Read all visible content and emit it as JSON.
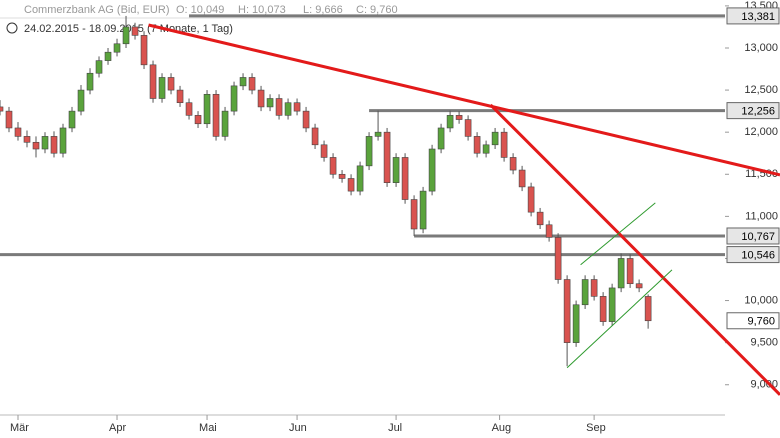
{
  "chart_data": {
    "type": "candlestick",
    "title": "Commerzbank AG (Bid, EUR)",
    "quote": [
      "O: 10,049",
      "H: 10,073",
      "L: 9,666",
      "C: 9,760"
    ],
    "subtitle": "24.02.2015 - 18.09.2015 (7 Monate, 1 Tag)",
    "x": [
      0,
      2,
      4,
      6,
      8,
      10,
      12,
      14,
      16,
      18,
      20,
      22,
      24,
      26,
      28,
      30,
      32,
      34,
      36,
      38,
      40,
      42,
      44,
      46,
      48,
      50,
      52,
      54,
      56,
      58,
      60,
      62,
      64,
      66,
      68,
      70,
      72,
      74,
      76,
      78,
      80,
      82,
      84,
      86,
      88,
      90,
      92,
      94,
      96,
      98,
      100,
      102,
      104,
      106,
      108,
      110,
      112,
      114,
      116,
      118,
      120,
      122,
      124,
      126,
      128,
      130,
      132,
      134,
      136,
      138,
      140,
      142,
      144
    ],
    "open": [
      12300,
      12250,
      12050,
      11950,
      11880,
      11800,
      11950,
      11750,
      12050,
      12250,
      12500,
      12700,
      12850,
      12950,
      13050,
      13250,
      13150,
      12800,
      12400,
      12650,
      12500,
      12350,
      12200,
      12100,
      12450,
      11950,
      12250,
      12550,
      12650,
      12500,
      12300,
      12400,
      12200,
      12350,
      12250,
      12050,
      11850,
      11700,
      11500,
      11450,
      11300,
      11600,
      11950,
      12000,
      11400,
      11700,
      11200,
      10850,
      11300,
      11800,
      12050,
      12200,
      12150,
      11950,
      11750,
      11850,
      12000,
      11700,
      11550,
      11350,
      11050,
      10900,
      10750,
      10250,
      9500,
      9950,
      10250,
      10050,
      9750,
      10150,
      10500,
      10200,
      10049
    ],
    "high": [
      12380,
      12300,
      12120,
      12020,
      11950,
      12000,
      12010,
      12100,
      12300,
      12560,
      12760,
      12900,
      13000,
      13110,
      13381,
      13300,
      13200,
      12850,
      12700,
      12700,
      12550,
      12400,
      12250,
      12500,
      12500,
      12300,
      12600,
      12700,
      12700,
      12550,
      12450,
      12450,
      12400,
      12400,
      12300,
      12100,
      11900,
      11750,
      11550,
      11500,
      11650,
      12000,
      12256,
      12050,
      11750,
      11750,
      11250,
      11350,
      11850,
      12100,
      12256,
      12250,
      12200,
      12000,
      11900,
      12050,
      12050,
      11750,
      11600,
      11400,
      11100,
      10950,
      10800,
      10300,
      10000,
      10300,
      10300,
      10100,
      10200,
      10560,
      10550,
      10250,
      10073
    ],
    "low": [
      12200,
      12000,
      11900,
      11820,
      11700,
      11750,
      11700,
      11700,
      12000,
      12200,
      12450,
      12650,
      12800,
      12900,
      13000,
      13100,
      12750,
      12350,
      12350,
      12450,
      12300,
      12150,
      12050,
      12050,
      11900,
      11900,
      12200,
      12500,
      12450,
      12250,
      12250,
      12150,
      12150,
      12200,
      12000,
      11800,
      11650,
      11450,
      11400,
      11250,
      11250,
      11550,
      11900,
      11350,
      11350,
      11150,
      10767,
      10800,
      11250,
      11750,
      12000,
      12100,
      11900,
      11700,
      11700,
      11800,
      11650,
      11500,
      11300,
      11000,
      10850,
      10700,
      10200,
      9220,
      9450,
      9900,
      10000,
      9700,
      9700,
      10100,
      10150,
      10100,
      9666
    ],
    "close": [
      12250,
      12050,
      11950,
      11880,
      11800,
      11950,
      11750,
      12050,
      12250,
      12500,
      12700,
      12850,
      12950,
      13050,
      13250,
      13150,
      12800,
      12400,
      12650,
      12500,
      12350,
      12200,
      12100,
      12450,
      11950,
      12250,
      12550,
      12650,
      12500,
      12300,
      12400,
      12200,
      12350,
      12250,
      12050,
      11850,
      11700,
      11500,
      11450,
      11300,
      11600,
      11950,
      12000,
      11400,
      11700,
      11200,
      10850,
      11300,
      11800,
      12050,
      12200,
      12150,
      11950,
      11750,
      11850,
      12000,
      11700,
      11550,
      11350,
      11050,
      10900,
      10750,
      10250,
      9500,
      9950,
      10250,
      10050,
      9750,
      10150,
      10500,
      10200,
      10150,
      9760
    ],
    "up_color": "#5aa33c",
    "down_color": "#d9534f",
    "xlim": [
      0,
      173.3
    ],
    "xticks": [
      {
        "value": 4,
        "label": "Mär"
      },
      {
        "value": 26,
        "label": "Apr"
      },
      {
        "value": 46,
        "label": "Mai"
      },
      {
        "value": 66,
        "label": "Jun"
      },
      {
        "value": 88,
        "label": "Jul"
      },
      {
        "value": 111,
        "label": "Aug"
      },
      {
        "value": 132,
        "label": "Sep"
      }
    ],
    "ylim": [
      8700,
      13570
    ],
    "yticks": [
      {
        "value": 9000,
        "label": "9,000"
      },
      {
        "value": 9500,
        "label": "9,500"
      },
      {
        "value": 10000,
        "label": "10,000"
      },
      {
        "value": 10500,
        "label": "10,500"
      },
      {
        "value": 11000,
        "label": "11,000"
      },
      {
        "value": 11500,
        "label": "11,500"
      },
      {
        "value": 12000,
        "label": "12,000"
      },
      {
        "value": 12500,
        "label": "12,500"
      },
      {
        "value": 13000,
        "label": "13,000"
      },
      {
        "value": 13500,
        "label": "13,500"
      }
    ],
    "levels": [
      {
        "value": 13381,
        "label": "13,381",
        "start": 42
      },
      {
        "value": 12256,
        "label": "12,256",
        "start": 82
      },
      {
        "value": 10767,
        "label": "10,767",
        "start": 92
      },
      {
        "value": 10546,
        "label": "10,546",
        "start": 0
      }
    ],
    "last": {
      "value": 9760,
      "label": "9,760"
    },
    "trendlines": [
      {
        "color": "#e31a1a",
        "x": [
          33,
          173.3
        ],
        "values": [
          13273,
          11493
        ]
      },
      {
        "color": "#e31a1a",
        "x": [
          109,
          173.3
        ],
        "values": [
          12324,
          8881
        ]
      },
      {
        "color": "#2e9a2e",
        "x": [
          129,
          145.6
        ],
        "values": [
          10425,
          11160
        ]
      },
      {
        "color": "#2e9a2e",
        "x": [
          126,
          149.3
        ],
        "values": [
          9202,
          10365
        ]
      }
    ]
  }
}
